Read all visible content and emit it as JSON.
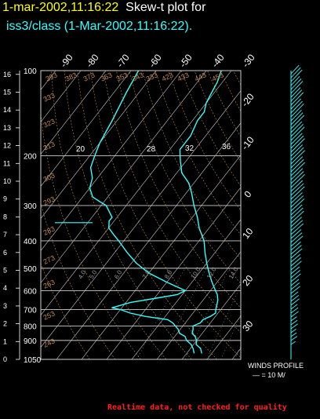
{
  "header": {
    "datetime": "1-mar-2002,11:16:22",
    "plot_title": "Skew-t plot for",
    "subtitle": "iss3/class (1-Mar-2002,11:16:22)."
  },
  "footer": {
    "note": "Realtime data, not checked for quality"
  },
  "wind_panel": {
    "title": "WINDS PROFILE",
    "scale": "— = 10 M/"
  },
  "colors": {
    "background": "#000000",
    "sounding": "#33ffff",
    "grid": "#cccccc",
    "isotherm_labels": "#ffffff",
    "adiabat_labels": "#c08a50"
  },
  "chart_data": {
    "type": "skew-t",
    "pressure_ticks": [
      "100",
      "200",
      "300",
      "400",
      "500",
      "600",
      "700",
      "800",
      "900",
      "1050"
    ],
    "pressure_levels": [
      100,
      200,
      300,
      400,
      500,
      600,
      700,
      800,
      900,
      1050
    ],
    "height_ticks": [
      "16",
      "15",
      "14",
      "13",
      "12",
      "11",
      "10",
      "9",
      "8",
      "7",
      "6",
      "5",
      "4",
      "3",
      "2",
      "1",
      "0"
    ],
    "heights_km": [
      16,
      15,
      14,
      13,
      12,
      11,
      10,
      9,
      8,
      7,
      6,
      5,
      4,
      3,
      2,
      1,
      0
    ],
    "isotherm_ticks": [
      "-90",
      "-80",
      "-70",
      "-60",
      "-50",
      "-40",
      "-30",
      "-20",
      "-10",
      "0",
      "10",
      "20",
      "30"
    ],
    "isotherms_c": [
      -90,
      -80,
      -70,
      -60,
      -50,
      -40,
      -30,
      -20,
      -10,
      0,
      10,
      20,
      30
    ],
    "mixing_ratio_labels": [
      "20",
      "28",
      "32",
      "36"
    ],
    "adiabat_labels_top": [
      "393",
      "383",
      "373",
      "363",
      "353",
      "343",
      "333",
      "423",
      "433",
      "443",
      "453"
    ],
    "adiabat_labels_left": [
      "333",
      "323",
      "313",
      "303",
      "293",
      "283",
      "273",
      "263",
      "253",
      "243"
    ],
    "moist_labels": [
      "4.0",
      "5.0",
      "6.0",
      "7.0",
      "8.0",
      "10.0",
      "12.0",
      "14.0"
    ],
    "temperature_profile": [
      [
        1000,
        16
      ],
      [
        960,
        14
      ],
      [
        930,
        11
      ],
      [
        900,
        10
      ],
      [
        870,
        8
      ],
      [
        850,
        6
      ],
      [
        820,
        5
      ],
      [
        800,
        4
      ],
      [
        780,
        6
      ],
      [
        760,
        6
      ],
      [
        740,
        8
      ],
      [
        720,
        9
      ],
      [
        700,
        8
      ],
      [
        650,
        6
      ],
      [
        620,
        4
      ],
      [
        600,
        2
      ],
      [
        560,
        -2
      ],
      [
        520,
        -6
      ],
      [
        480,
        -10
      ],
      [
        440,
        -14
      ],
      [
        400,
        -18
      ],
      [
        360,
        -24
      ],
      [
        330,
        -28
      ],
      [
        300,
        -33
      ],
      [
        270,
        -38
      ],
      [
        250,
        -42
      ],
      [
        230,
        -48
      ],
      [
        210,
        -52
      ],
      [
        200,
        -54
      ],
      [
        190,
        -56
      ],
      [
        180,
        -56
      ],
      [
        170,
        -56
      ],
      [
        160,
        -57
      ],
      [
        150,
        -58
      ],
      [
        140,
        -58
      ],
      [
        130,
        -60
      ],
      [
        120,
        -61
      ],
      [
        110,
        -62
      ],
      [
        100,
        -64
      ]
    ],
    "dewpoint_profile": [
      [
        1000,
        13
      ],
      [
        960,
        11
      ],
      [
        930,
        9
      ],
      [
        900,
        6
      ],
      [
        870,
        4
      ],
      [
        850,
        1
      ],
      [
        820,
        -1
      ],
      [
        800,
        -3
      ],
      [
        780,
        -5
      ],
      [
        760,
        -8
      ],
      [
        740,
        -18
      ],
      [
        720,
        -25
      ],
      [
        700,
        -30
      ],
      [
        690,
        -34
      ],
      [
        660,
        -28
      ],
      [
        640,
        -20
      ],
      [
        620,
        -12
      ],
      [
        600,
        -10
      ],
      [
        560,
        -20
      ],
      [
        520,
        -30
      ],
      [
        480,
        -38
      ],
      [
        440,
        -45
      ],
      [
        400,
        -52
      ],
      [
        380,
        -56
      ],
      [
        360,
        -60
      ],
      [
        340,
        -62
      ],
      [
        330,
        -62
      ],
      [
        300,
        -68
      ],
      [
        290,
        -72
      ],
      [
        280,
        -76
      ],
      [
        260,
        -80
      ],
      [
        240,
        -82
      ],
      [
        220,
        -86
      ],
      [
        200,
        -88
      ],
      [
        180,
        -90
      ],
      [
        150,
        -92
      ],
      [
        120,
        -95
      ],
      [
        100,
        -97
      ]
    ]
  }
}
